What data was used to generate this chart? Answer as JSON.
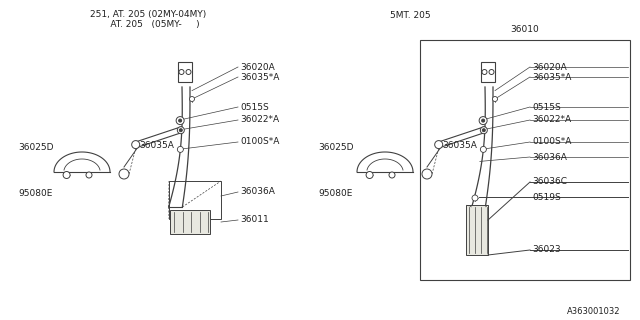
{
  "bg_color": "#ffffff",
  "line_color": "#404040",
  "text_color": "#202020",
  "title_left_line1": "251, AT. 205 (02MY-04MY)",
  "title_left_line2": "     AT. 205   (05MY-     )",
  "title_right": "5MT. 205",
  "label_36010": "36010",
  "diagram_id": "A363001032",
  "figsize": [
    6.4,
    3.2
  ],
  "dpi": 100
}
